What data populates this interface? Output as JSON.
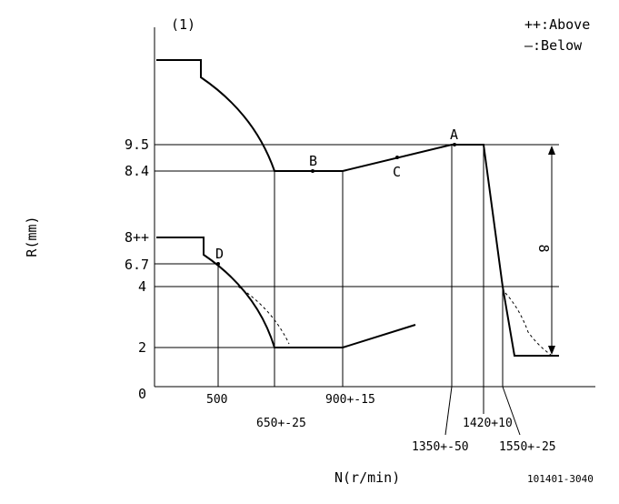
{
  "figure_label": "(1)",
  "legend": {
    "above": "++:Above",
    "below": "—:Below"
  },
  "axes": {
    "y_label": "R(mm)",
    "x_label": "N(r/min)",
    "y_ticks": [
      "9.5",
      "8.4",
      "8++",
      "6.7",
      "4",
      "2",
      "0"
    ],
    "x_ticks_top": [
      "500",
      "900+-15"
    ],
    "x_ticks_bottom": [
      "650+-25",
      "1350+-50",
      "1420+10",
      "1550+-25"
    ]
  },
  "points": {
    "A": "A",
    "B": "B",
    "C": "C",
    "D": "D"
  },
  "dimension_label": "8",
  "part_code": "101401-3040",
  "colors": {
    "line": "#000000",
    "background": "#ffffff"
  }
}
